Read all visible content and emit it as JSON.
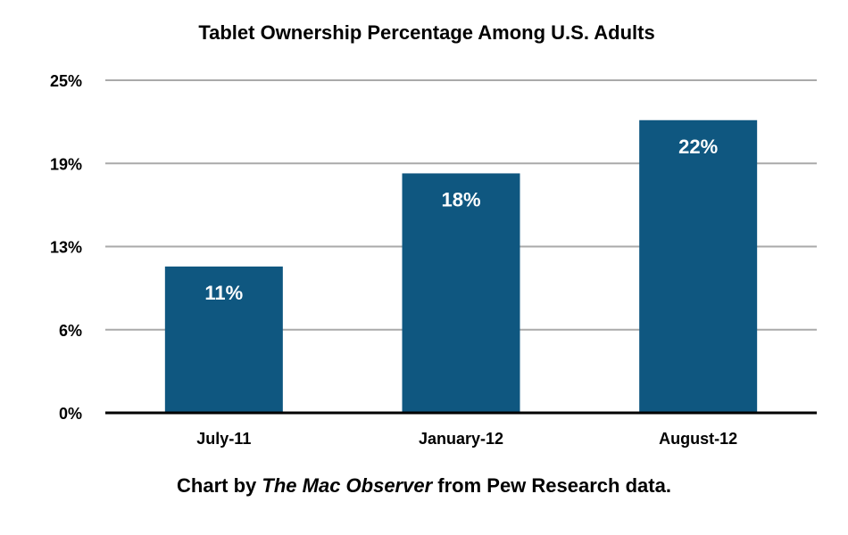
{
  "chart_data": {
    "type": "bar",
    "title": "Tablet Ownership Percentage Among U.S. Adults",
    "categories": [
      "July-11",
      "January-12",
      "August-12"
    ],
    "values": [
      11,
      18,
      22
    ],
    "data_labels": [
      "11%",
      "18%",
      "22%"
    ],
    "xlabel": "",
    "ylabel": "",
    "ylim": [
      0,
      25
    ],
    "y_ticks": [
      0,
      6.25,
      12.5,
      18.75,
      25
    ],
    "y_tick_labels": [
      "0%",
      "6%",
      "13%",
      "19%",
      "25%"
    ],
    "grid": true,
    "bar_color": "#0f5780"
  },
  "caption": {
    "prefix": "Chart by ",
    "italic": "The Mac Observer",
    "suffix": " from Pew Research data."
  }
}
